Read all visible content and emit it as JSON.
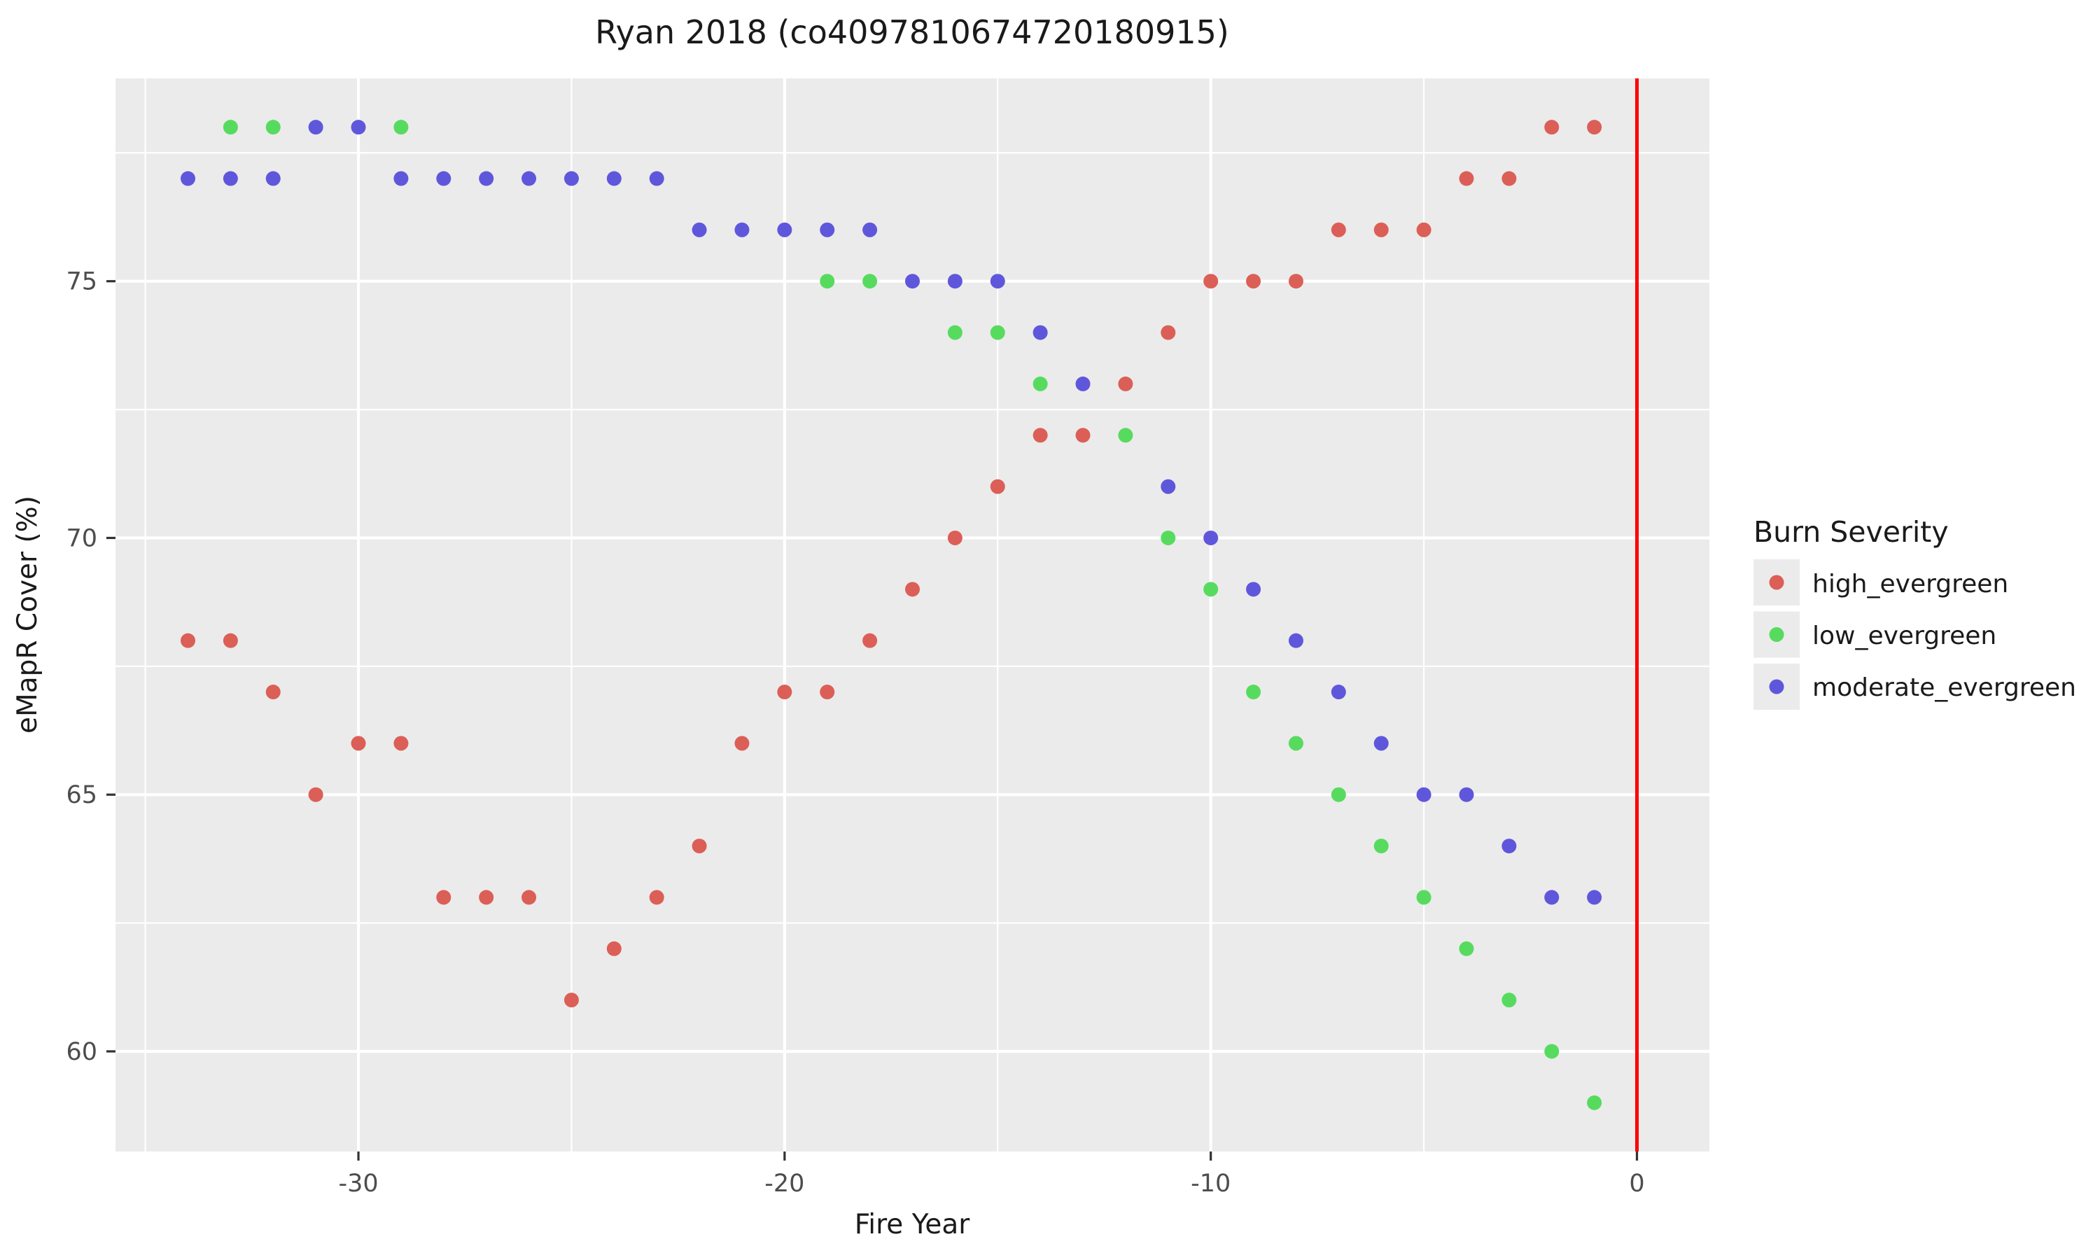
{
  "chart_data": {
    "type": "scatter",
    "title": "Ryan 2018 (co4097810674720180915)",
    "xlabel": "Fire Year",
    "ylabel": "eMapR Cover (%)",
    "xlim": [
      -35.7,
      1.7
    ],
    "ylim": [
      58.05,
      78.95
    ],
    "x_major_ticks": [
      -30,
      -20,
      -10,
      0
    ],
    "x_tick_labels": [
      "-30",
      "-20",
      "-10",
      "0"
    ],
    "x_minor_gridlines": [
      -35,
      -25,
      -15,
      -5
    ],
    "y_major_ticks": [
      60,
      65,
      70,
      75
    ],
    "y_tick_labels": [
      "60",
      "65",
      "70",
      "75"
    ],
    "y_minor_gridlines": [
      62.5,
      67.5,
      72.5,
      77.5
    ],
    "grid": "on",
    "legend_position": "right",
    "panel_bg_color": "#EBEBEB",
    "grid_color": "#FFFFFF",
    "tick_mark_color": "#333333",
    "tick_label_color": "#4D4D4D",
    "text_color": "#1a1a1a",
    "vline": {
      "x": 0,
      "color": "#FF0000"
    },
    "legend": {
      "title": "Burn Severity",
      "key_bg": "#EBEBEB"
    },
    "series": [
      {
        "name": "high_evergreen",
        "color": "#DB5F57",
        "points": [
          [
            -34,
            68
          ],
          [
            -33,
            68
          ],
          [
            -32,
            67
          ],
          [
            -31,
            65
          ],
          [
            -30,
            66
          ],
          [
            -29,
            66
          ],
          [
            -28,
            63
          ],
          [
            -27,
            63
          ],
          [
            -26,
            63
          ],
          [
            -25,
            61
          ],
          [
            -24,
            62
          ],
          [
            -23,
            63
          ],
          [
            -22,
            64
          ],
          [
            -21,
            66
          ],
          [
            -20,
            67
          ],
          [
            -19,
            67
          ],
          [
            -18,
            68
          ],
          [
            -17,
            69
          ],
          [
            -16,
            70
          ],
          [
            -15,
            71
          ],
          [
            -14,
            72
          ],
          [
            -13,
            72
          ],
          [
            -12,
            73
          ],
          [
            -11,
            74
          ],
          [
            -10,
            75
          ],
          [
            -9,
            75
          ],
          [
            -8,
            75
          ],
          [
            -7,
            76
          ],
          [
            -6,
            76
          ],
          [
            -5,
            76
          ],
          [
            -4,
            77
          ],
          [
            -3,
            77
          ],
          [
            -2,
            78
          ],
          [
            -1,
            78
          ]
        ]
      },
      {
        "name": "low_evergreen",
        "color": "#57DB5F",
        "points": [
          [
            -33,
            78
          ],
          [
            -32,
            78
          ],
          [
            -29,
            78
          ],
          [
            -19,
            75
          ],
          [
            -18,
            75
          ],
          [
            -16,
            74
          ],
          [
            -15,
            74
          ],
          [
            -14,
            73
          ],
          [
            -12,
            72
          ],
          [
            -11,
            70
          ],
          [
            -10,
            69
          ],
          [
            -9,
            67
          ],
          [
            -8,
            66
          ],
          [
            -7,
            65
          ],
          [
            -6,
            64
          ],
          [
            -5,
            63
          ],
          [
            -4,
            62
          ],
          [
            -3,
            61
          ],
          [
            -2,
            60
          ],
          [
            -1,
            59
          ]
        ]
      },
      {
        "name": "moderate_evergreen",
        "color": "#5F57DB",
        "points": [
          [
            -34,
            77
          ],
          [
            -33,
            77
          ],
          [
            -32,
            77
          ],
          [
            -31,
            78
          ],
          [
            -30,
            78
          ],
          [
            -29,
            77
          ],
          [
            -28,
            77
          ],
          [
            -27,
            77
          ],
          [
            -26,
            77
          ],
          [
            -25,
            77
          ],
          [
            -24,
            77
          ],
          [
            -23,
            77
          ],
          [
            -22,
            76
          ],
          [
            -21,
            76
          ],
          [
            -20,
            76
          ],
          [
            -19,
            76
          ],
          [
            -18,
            76
          ],
          [
            -17,
            75
          ],
          [
            -16,
            75
          ],
          [
            -15,
            75
          ],
          [
            -14,
            74
          ],
          [
            -13,
            73
          ],
          [
            -11,
            71
          ],
          [
            -10,
            70
          ],
          [
            -9,
            69
          ],
          [
            -8,
            68
          ],
          [
            -7,
            67
          ],
          [
            -6,
            66
          ],
          [
            -5,
            65
          ],
          [
            -4,
            65
          ],
          [
            -3,
            64
          ],
          [
            -2,
            63
          ],
          [
            -1,
            63
          ]
        ]
      }
    ]
  }
}
